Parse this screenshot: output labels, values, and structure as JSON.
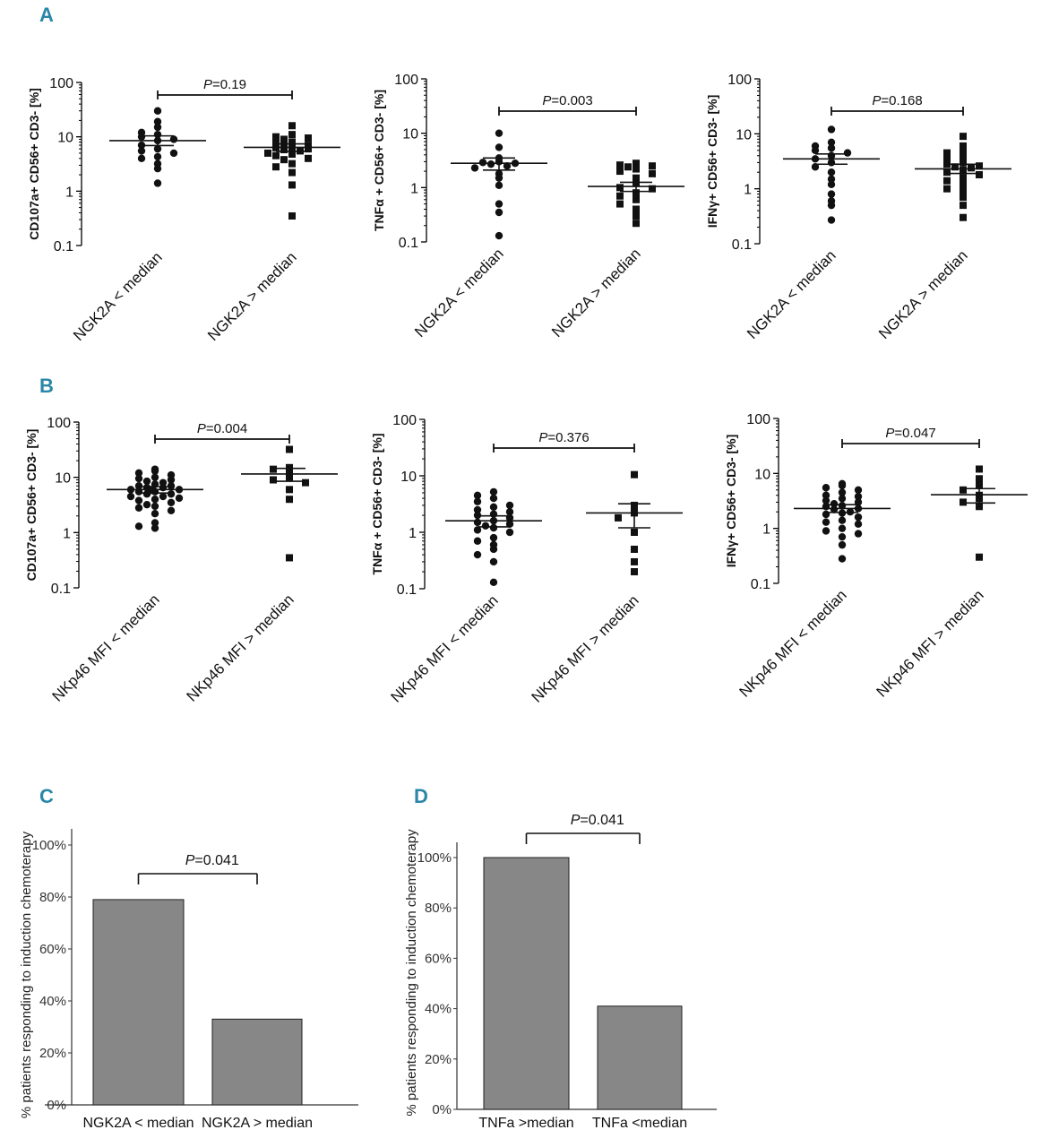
{
  "panels": {
    "A": "A",
    "B": "B",
    "C": "C",
    "D": "D"
  },
  "chart_data": [
    {
      "id": "A1",
      "type": "scatter",
      "yscale": "log",
      "ylim": [
        0.1,
        100
      ],
      "yticks": [
        "0.1",
        "1",
        "10",
        "100"
      ],
      "ylabel": "CD107a+ CD56+ CD3- [%]",
      "categories": [
        "NGK2A < median",
        "NGK2A > median"
      ],
      "pvalue": {
        "p": "P",
        "text": "=0.19"
      },
      "series": [
        {
          "name": "NGK2A < median",
          "marker": "circle",
          "mean": 8.5,
          "sem_low": 6.9,
          "sem_high": 10.4,
          "values": [
            30,
            19,
            15,
            12,
            11,
            10,
            9,
            8.5,
            7,
            6,
            5.5,
            5,
            4.3,
            4,
            3.2,
            2.6,
            1.4
          ]
        },
        {
          "name": "NGK2A > median",
          "marker": "square",
          "mean": 6.4,
          "sem_low": 5.4,
          "sem_high": 7.4,
          "values": [
            16,
            11,
            10,
            9.5,
            9,
            8,
            7.5,
            7,
            6.8,
            6.5,
            6.3,
            6,
            5.8,
            5.5,
            5,
            4.8,
            4.5,
            4,
            3.8,
            3.2,
            2.8,
            2.2,
            1.3,
            0.35
          ]
        }
      ]
    },
    {
      "id": "A2",
      "type": "scatter",
      "yscale": "log",
      "ylim": [
        0.1,
        100
      ],
      "yticks": [
        "0.1",
        "1",
        "10",
        "100"
      ],
      "ylabel": "TNFα + CD56+ CD3- [%]",
      "categories": [
        "NGK2A < median",
        "NGK2A > median"
      ],
      "pvalue": {
        "p": "P",
        "text": "=0.003"
      },
      "series": [
        {
          "name": "NGK2A < median",
          "marker": "circle",
          "mean": 2.8,
          "sem_low": 2.1,
          "sem_high": 3.5,
          "values": [
            10,
            5.5,
            3.5,
            3,
            2.9,
            2.8,
            2.7,
            2.5,
            2.3,
            1.8,
            1.5,
            1.1,
            0.5,
            0.35,
            0.13
          ]
        },
        {
          "name": "NGK2A > median",
          "marker": "square",
          "mean": 1.05,
          "sem_low": 0.85,
          "sem_high": 1.25,
          "values": [
            2.8,
            2.6,
            2.5,
            2.4,
            2.2,
            2,
            1.8,
            1.5,
            1.2,
            1,
            0.95,
            0.8,
            0.7,
            0.6,
            0.5,
            0.4,
            0.3,
            0.22
          ]
        }
      ]
    },
    {
      "id": "A3",
      "type": "scatter",
      "yscale": "log",
      "ylim": [
        0.1,
        100
      ],
      "yticks": [
        "0.1",
        "1",
        "10",
        "100"
      ],
      "ylabel": "IFNγ+ CD56+ CD3- [%]",
      "categories": [
        "NGK2A < median",
        "NGK2A > median"
      ],
      "pvalue": {
        "p": "P",
        "text": "=0.168"
      },
      "series": [
        {
          "name": "NGK2A < median",
          "marker": "circle",
          "mean": 3.5,
          "sem_low": 2.8,
          "sem_high": 4.3,
          "values": [
            12,
            7,
            6,
            5.5,
            5,
            4.5,
            4,
            3.5,
            3,
            2.5,
            2,
            1.5,
            1.2,
            0.8,
            0.6,
            0.5,
            0.27
          ]
        },
        {
          "name": "NGK2A > median",
          "marker": "square",
          "mean": 2.3,
          "sem_low": 1.9,
          "sem_high": 2.8,
          "values": [
            9,
            6,
            5,
            4.5,
            4,
            3.5,
            3,
            2.8,
            2.6,
            2.5,
            2.4,
            2.2,
            2,
            1.8,
            1.6,
            1.4,
            1.2,
            1,
            0.9,
            0.7,
            0.5,
            0.3
          ]
        }
      ]
    },
    {
      "id": "B1",
      "type": "scatter",
      "yscale": "log",
      "ylim": [
        0.1,
        100
      ],
      "yticks": [
        "0.1",
        "1",
        "10",
        "100"
      ],
      "ylabel": "CD107a+ CD56+ CD3- [%]",
      "categories": [
        "NKp46 MFI < median",
        "NKp46 MFI > median"
      ],
      "pvalue": {
        "p": "P",
        "text": "=0.004"
      },
      "series": [
        {
          "name": "NKp46 MFI < median",
          "marker": "circle",
          "mean": 6,
          "sem_low": 5.2,
          "sem_high": 6.8,
          "values": [
            14,
            13,
            12,
            11,
            10,
            9.5,
            9,
            8.5,
            8,
            7.5,
            7,
            7,
            6.5,
            6.5,
            6,
            6,
            5.8,
            5.5,
            5.5,
            5,
            5,
            4.5,
            4.5,
            4.2,
            4,
            3.8,
            3.5,
            3.2,
            3,
            2.8,
            2.5,
            2.2,
            1.5,
            1.3,
            1.2
          ]
        },
        {
          "name": "NKp46 MFI > median",
          "marker": "square",
          "mean": 11.5,
          "sem_low": 8.5,
          "sem_high": 14.5,
          "values": [
            32,
            15,
            14,
            12,
            10,
            9,
            8,
            6,
            4,
            0.35
          ]
        }
      ]
    },
    {
      "id": "B2",
      "type": "scatter",
      "yscale": "log",
      "ylim": [
        0.1,
        100
      ],
      "yticks": [
        "0.1",
        "1",
        "10",
        "100"
      ],
      "ylabel": "TNFα + CD56+ CD3- [%]",
      "categories": [
        "NKp46 MFI < median",
        "NKp46 MFI > median"
      ],
      "pvalue": {
        "p": "P",
        "text": "=0.376"
      },
      "series": [
        {
          "name": "NKp46 MFI < median",
          "marker": "circle",
          "mean": 1.6,
          "sem_low": 1.25,
          "sem_high": 1.95,
          "values": [
            5.2,
            4.5,
            4,
            3.5,
            3,
            2.8,
            2.5,
            2.3,
            2.1,
            2,
            1.8,
            1.6,
            1.5,
            1.4,
            1.3,
            1.2,
            1.1,
            1,
            0.8,
            0.7,
            0.6,
            0.5,
            0.4,
            0.3,
            0.13
          ]
        },
        {
          "name": "NKp46 MFI > median",
          "marker": "square",
          "mean": 2.2,
          "sem_low": 1.2,
          "sem_high": 3.2,
          "values": [
            10.5,
            3,
            2.5,
            2.2,
            1.8,
            1,
            0.5,
            0.3,
            0.2
          ]
        }
      ]
    },
    {
      "id": "B3",
      "type": "scatter",
      "yscale": "log",
      "ylim": [
        0.1,
        100
      ],
      "yticks": [
        "0.1",
        "1",
        "10",
        "100"
      ],
      "ylabel": "IFNγ+ CD56+ CD3- [%]",
      "categories": [
        "NKp46 MFI < median",
        "NKp46 MFI > median"
      ],
      "pvalue": {
        "p": "P",
        "text": "=0.047"
      },
      "series": [
        {
          "name": "NKp46 MFI < median",
          "marker": "circle",
          "mean": 2.3,
          "sem_low": 1.95,
          "sem_high": 2.7,
          "values": [
            6.5,
            6,
            5.5,
            5,
            4.5,
            4,
            3.8,
            3.5,
            3.2,
            3,
            2.8,
            2.6,
            2.5,
            2.3,
            2.2,
            2,
            1.9,
            1.8,
            1.6,
            1.4,
            1.3,
            1.2,
            1,
            0.9,
            0.8,
            0.7,
            0.5,
            0.28
          ]
        },
        {
          "name": "NKp46 MFI > median",
          "marker": "square",
          "mean": 4.1,
          "sem_low": 2.9,
          "sem_high": 5.3,
          "values": [
            12,
            8,
            6,
            5,
            4,
            3.5,
            3,
            2.5,
            0.3
          ]
        }
      ]
    },
    {
      "id": "C",
      "type": "bar",
      "categories": [
        "NGK2A < median",
        "NGK2A > median"
      ],
      "values": [
        79,
        33
      ],
      "ylim": [
        0,
        100
      ],
      "yticks": [
        "0%",
        "20%",
        "40%",
        "60%",
        "80%",
        "100%"
      ],
      "ylabel": "% patients responding to induction chemoterapy",
      "pvalue": {
        "p": "P",
        "text": "=0.041"
      }
    },
    {
      "id": "D",
      "type": "bar",
      "categories": [
        "TNFa >median",
        "TNFa <median"
      ],
      "values": [
        100,
        41
      ],
      "ylim": [
        0,
        100
      ],
      "yticks": [
        "0%",
        "20%",
        "40%",
        "60%",
        "80%",
        "100%"
      ],
      "ylabel": "% patients responding to induction chemoterapy",
      "pvalue": {
        "p": "P",
        "text": "=0.041"
      }
    }
  ]
}
